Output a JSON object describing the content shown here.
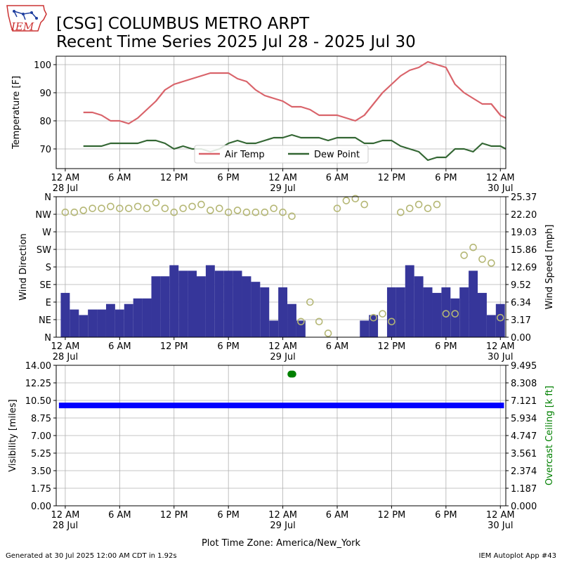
{
  "header": {
    "title_line1": "[CSG] COLUMBUS METRO ARPT",
    "title_line2": "Recent Time Series 2025 Jul 28 - 2025 Jul 30",
    "logo_text": "IEM"
  },
  "footer": {
    "generated": "Generated at 30 Jul 2025 12:00 AM CDT in 1.92s",
    "app": "IEM Autoplot App #43",
    "timezone_label": "Plot Time Zone: America/New_York"
  },
  "colors": {
    "air_temp": "#d9636a",
    "dew_point": "#336633",
    "wind_speed": "#36369a",
    "wind_direction": "#b5b775",
    "visibility": "#0000ff",
    "ceiling": "#008000",
    "grid": "#b0b0b0"
  },
  "x_axis": {
    "range_hours": [
      -1,
      48.6
    ],
    "ticks": [
      {
        "hour": 0,
        "label": "12 AM",
        "sublabel": "28 Jul"
      },
      {
        "hour": 6,
        "label": "6 AM",
        "sublabel": ""
      },
      {
        "hour": 12,
        "label": "12 PM",
        "sublabel": ""
      },
      {
        "hour": 18,
        "label": "6 PM",
        "sublabel": ""
      },
      {
        "hour": 24,
        "label": "12 AM",
        "sublabel": "29 Jul"
      },
      {
        "hour": 30,
        "label": "6 AM",
        "sublabel": ""
      },
      {
        "hour": 36,
        "label": "12 PM",
        "sublabel": ""
      },
      {
        "hour": 42,
        "label": "6 PM",
        "sublabel": ""
      },
      {
        "hour": 48,
        "label": "12 AM",
        "sublabel": "30 Jul"
      }
    ]
  },
  "chart_data": [
    {
      "type": "line",
      "ylabel": "Temperature [F]",
      "ylim": [
        63,
        103
      ],
      "yticks": [
        70,
        80,
        90,
        100
      ],
      "grid": true,
      "legend_placement": "lower-center",
      "series": [
        {
          "name": "Air Temp",
          "x": [
            2,
            3,
            4,
            5,
            6,
            7,
            8,
            9,
            10,
            11,
            12,
            13,
            14,
            15,
            16,
            17,
            18,
            19,
            20,
            21,
            22,
            23,
            24,
            25,
            26,
            27,
            28,
            29,
            30,
            31,
            32,
            33,
            34,
            35,
            36,
            37,
            38,
            39,
            40,
            41,
            42,
            43,
            44,
            45,
            46,
            47,
            48,
            48.6
          ],
          "values": [
            83,
            83,
            82,
            80,
            80,
            79,
            81,
            84,
            87,
            91,
            93,
            94,
            95,
            96,
            97,
            97,
            97,
            95,
            94,
            91,
            89,
            88,
            87,
            85,
            85,
            84,
            82,
            82,
            82,
            81,
            80,
            82,
            86,
            90,
            93,
            96,
            98,
            99,
            101,
            100,
            99,
            93,
            90,
            88,
            86,
            86,
            82,
            81
          ]
        },
        {
          "name": "Dew Point",
          "x": [
            2,
            3,
            4,
            5,
            6,
            7,
            8,
            9,
            10,
            11,
            12,
            13,
            14,
            15,
            16,
            17,
            18,
            19,
            20,
            21,
            22,
            23,
            24,
            25,
            26,
            27,
            28,
            29,
            30,
            31,
            32,
            33,
            34,
            35,
            36,
            37,
            38,
            39,
            40,
            41,
            42,
            43,
            44,
            45,
            46,
            47,
            48,
            48.6
          ],
          "values": [
            71,
            71,
            71,
            72,
            72,
            72,
            72,
            73,
            73,
            72,
            70,
            71,
            70,
            70,
            69,
            70,
            72,
            73,
            72,
            72,
            73,
            74,
            74,
            75,
            74,
            74,
            74,
            73,
            74,
            74,
            74,
            72,
            72,
            73,
            73,
            71,
            70,
            69,
            66,
            67,
            67,
            70,
            70,
            69,
            72,
            71,
            71,
            70
          ]
        }
      ]
    },
    {
      "type": "bar",
      "ylabel": "Wind Direction",
      "ylabel_right": "Wind Speed [mph]",
      "direction_ticks": [
        "N",
        "NE",
        "E",
        "SE",
        "S",
        "SW",
        "W",
        "NW",
        "N"
      ],
      "direction_ylim": [
        0,
        360
      ],
      "speed_ylim": [
        0,
        25.37
      ],
      "speed_ticks": [
        "0.00",
        "3.17",
        "6.34",
        "9.52",
        "12.69",
        "15.86",
        "19.03",
        "22.20",
        "25.37"
      ],
      "grid": true,
      "series": [
        {
          "name": "Wind Speed",
          "x": [
            0,
            1,
            2,
            3,
            4,
            5,
            6,
            7,
            8,
            9,
            10,
            11,
            12,
            13,
            14,
            15,
            16,
            17,
            18,
            19,
            20,
            21,
            22,
            23,
            24,
            25,
            26,
            27,
            28,
            29,
            30,
            31,
            32,
            33,
            34,
            35,
            36,
            37,
            38,
            39,
            40,
            41,
            42,
            43,
            44,
            45,
            46,
            47,
            48
          ],
          "values": [
            8,
            5,
            4,
            5,
            5,
            6,
            5,
            6,
            7,
            7,
            11,
            11,
            13,
            12,
            12,
            11,
            13,
            12,
            12,
            12,
            11,
            10,
            9,
            3,
            9,
            6,
            3,
            0,
            0,
            0,
            0,
            0,
            0,
            3,
            4,
            0,
            9,
            9,
            13,
            11,
            9,
            8,
            9,
            7,
            9,
            12,
            8,
            4,
            6
          ]
        },
        {
          "name": "Wind Direction",
          "x": [
            0,
            1,
            2,
            3,
            4,
            5,
            6,
            7,
            8,
            9,
            10,
            11,
            12,
            13,
            14,
            15,
            16,
            17,
            18,
            19,
            20,
            21,
            22,
            23,
            24,
            25,
            26,
            27,
            28,
            29,
            30,
            31,
            32,
            33,
            34,
            35,
            36,
            37,
            38,
            39,
            40,
            41,
            42,
            43,
            44,
            45,
            46,
            47,
            48
          ],
          "values": [
            320,
            320,
            325,
            330,
            330,
            335,
            330,
            330,
            335,
            330,
            345,
            330,
            320,
            330,
            335,
            340,
            325,
            330,
            320,
            325,
            320,
            320,
            320,
            330,
            320,
            310,
            40,
            90,
            40,
            10,
            330,
            350,
            355,
            340,
            50,
            60,
            40,
            320,
            330,
            340,
            330,
            340,
            60,
            60,
            210,
            230,
            200,
            190,
            50
          ]
        }
      ]
    },
    {
      "type": "scatter",
      "ylabel": "Visibility [miles]",
      "ylabel_right": "Overcast Ceiling [k ft]",
      "ylim": [
        0,
        14
      ],
      "yticks": [
        "0.00",
        "1.75",
        "3.50",
        "5.25",
        "7.00",
        "8.75",
        "10.50",
        "12.25",
        "14.00"
      ],
      "ceiling_ylim": [
        0,
        9.495
      ],
      "ceiling_ticks": [
        "0.000",
        "1.187",
        "2.374",
        "3.561",
        "4.747",
        "5.934",
        "7.121",
        "8.308",
        "9.495"
      ],
      "grid": true,
      "series": [
        {
          "name": "Visibility",
          "x_range": [
            -0.7,
            48.4
          ],
          "value": 10
        },
        {
          "name": "Overcast Ceiling",
          "x": [
            24.9,
            25.1
          ],
          "values": [
            8.9,
            8.9
          ]
        }
      ]
    }
  ]
}
